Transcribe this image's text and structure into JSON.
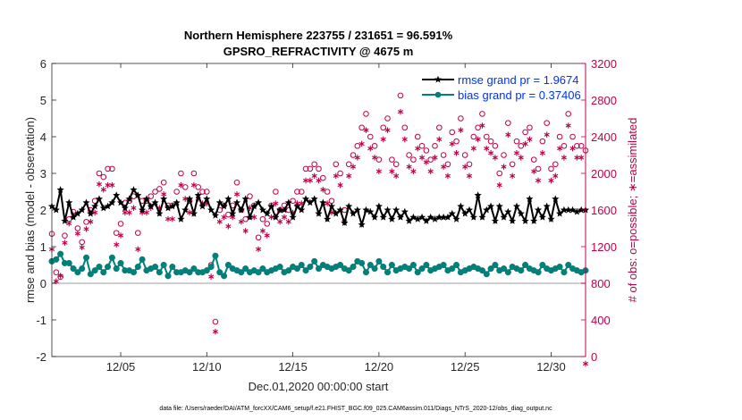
{
  "chart_data": {
    "type": "line",
    "title": "Northern Hemisphere 223755 / 231651 = 96.591%",
    "subtitle": "GPSRO_REFRACTIVITY @ 4675 m",
    "xlabel": "Dec.01,2020 00:00:00 start",
    "ylabel": "rmse and bias (model - observation)",
    "ylabel_right": "# of obs: o=possible; ∗=assimilated",
    "xlim": [
      1,
      32
    ],
    "ylim": [
      -2,
      6
    ],
    "ylim_right": [
      0,
      3200
    ],
    "x_ticks": [
      5,
      10,
      15,
      20,
      25,
      30
    ],
    "x_tick_labels": [
      "12/05",
      "12/10",
      "12/15",
      "12/20",
      "12/25",
      "12/30"
    ],
    "y_ticks": [
      -2,
      -1,
      0,
      1,
      2,
      3,
      4,
      5,
      6
    ],
    "y_tick_labels": [
      "-2",
      "-1",
      "0",
      "1",
      "2",
      "3",
      "4",
      "5",
      "6"
    ],
    "y_right_ticks": [
      0,
      400,
      800,
      1200,
      1600,
      2000,
      2400,
      2800,
      3200
    ],
    "y_right_tick_labels": [
      "0",
      "400",
      "800",
      "1200",
      "1600",
      "2000",
      "2400",
      "2800",
      "3200"
    ],
    "x": [
      1.0,
      1.25,
      1.5,
      1.75,
      2.0,
      2.25,
      2.5,
      2.75,
      3.0,
      3.25,
      3.5,
      3.75,
      4.0,
      4.25,
      4.5,
      4.75,
      5.0,
      5.25,
      5.5,
      5.75,
      6.0,
      6.25,
      6.5,
      6.75,
      7.0,
      7.25,
      7.5,
      7.75,
      8.0,
      8.25,
      8.5,
      8.75,
      9.0,
      9.25,
      9.5,
      9.75,
      10.0,
      10.25,
      10.5,
      10.75,
      11.0,
      11.25,
      11.5,
      11.75,
      12.0,
      12.25,
      12.5,
      12.75,
      13.0,
      13.25,
      13.5,
      13.75,
      14.0,
      14.25,
      14.5,
      14.75,
      15.0,
      15.25,
      15.5,
      15.75,
      16.0,
      16.25,
      16.5,
      16.75,
      17.0,
      17.25,
      17.5,
      17.75,
      18.0,
      18.25,
      18.5,
      18.75,
      19.0,
      19.25,
      19.5,
      19.75,
      20.0,
      20.25,
      20.5,
      20.75,
      21.0,
      21.25,
      21.5,
      21.75,
      22.0,
      22.25,
      22.5,
      22.75,
      23.0,
      23.25,
      23.5,
      23.75,
      24.0,
      24.25,
      24.5,
      24.75,
      25.0,
      25.25,
      25.5,
      25.75,
      26.0,
      26.25,
      26.5,
      26.75,
      27.0,
      27.25,
      27.5,
      27.75,
      28.0,
      28.25,
      28.5,
      28.75,
      29.0,
      29.25,
      29.5,
      29.75,
      30.0,
      30.25,
      30.5,
      30.75,
      31.0,
      31.25,
      31.5,
      31.75,
      32.0
    ],
    "series": [
      {
        "name": "rmse grand pr = 1.9674",
        "axis": "left",
        "color": "#000000",
        "marker": "star",
        "values": [
          2.1,
          2.0,
          2.55,
          1.7,
          2.2,
          1.8,
          1.9,
          2.0,
          2.2,
          1.9,
          2.1,
          2.3,
          2.05,
          2.1,
          2.2,
          2.4,
          2.2,
          2.05,
          2.3,
          2.55,
          2.4,
          2.0,
          2.3,
          2.1,
          2.2,
          1.9,
          2.3,
          2.05,
          2.1,
          2.2,
          1.75,
          2.0,
          2.3,
          1.9,
          2.4,
          2.1,
          2.3,
          2.0,
          1.85,
          2.2,
          2.1,
          2.3,
          1.9,
          2.2,
          2.0,
          2.3,
          1.8,
          2.1,
          2.2,
          2.0,
          1.9,
          2.1,
          1.8,
          2.0,
          2.0,
          2.2,
          1.8,
          2.1,
          2.0,
          2.3,
          2.2,
          2.3,
          1.9,
          2.2,
          1.75,
          2.1,
          1.9,
          2.0,
          1.65,
          2.1,
          1.9,
          2.0,
          1.6,
          2.0,
          1.95,
          1.8,
          2.1,
          1.8,
          2.0,
          1.75,
          2.0,
          1.8,
          1.95,
          1.7,
          1.8,
          1.75,
          1.8,
          1.7,
          1.8,
          1.75,
          1.8,
          1.8,
          1.8,
          1.9,
          1.75,
          2.1,
          1.9,
          2.0,
          1.8,
          2.4,
          1.8,
          2.0,
          2.1,
          1.7,
          2.1,
          1.8,
          1.95,
          1.7,
          2.1,
          1.9,
          1.7,
          2.3,
          1.7,
          2.0,
          1.8,
          2.1,
          1.75,
          2.3,
          1.9,
          2.0,
          2.0,
          2.0,
          1.95,
          2.0,
          2.0
        ]
      },
      {
        "name": "bias grand pr = 0.37406",
        "axis": "left",
        "color": "#00807a",
        "marker": "circle",
        "values": [
          0.6,
          0.65,
          0.8,
          0.55,
          0.55,
          0.4,
          0.3,
          0.4,
          0.7,
          0.25,
          0.35,
          0.45,
          0.3,
          0.45,
          0.7,
          0.4,
          0.55,
          0.35,
          0.35,
          0.3,
          0.45,
          0.65,
          0.35,
          0.4,
          0.45,
          0.3,
          0.5,
          0.2,
          0.45,
          0.3,
          0.3,
          0.35,
          0.3,
          0.4,
          0.3,
          0.3,
          0.35,
          0.45,
          0.75,
          0.3,
          0.2,
          0.5,
          0.4,
          0.35,
          0.3,
          0.4,
          0.3,
          0.35,
          0.3,
          0.4,
          0.3,
          0.35,
          0.4,
          0.45,
          0.3,
          0.35,
          0.45,
          0.4,
          0.5,
          0.35,
          0.45,
          0.6,
          0.4,
          0.5,
          0.45,
          0.4,
          0.45,
          0.5,
          0.4,
          0.35,
          0.45,
          0.6,
          0.55,
          0.3,
          0.5,
          0.4,
          0.6,
          0.45,
          0.3,
          0.5,
          0.35,
          0.4,
          0.45,
          0.4,
          0.5,
          0.3,
          0.4,
          0.5,
          0.35,
          0.4,
          0.45,
          0.5,
          0.35,
          0.4,
          0.5,
          0.3,
          0.35,
          0.4,
          0.45,
          0.4,
          0.35,
          0.25,
          0.4,
          0.5,
          0.35,
          0.4,
          0.3,
          0.45,
          0.4,
          0.35,
          0.5,
          0.4,
          0.35,
          0.3,
          0.5,
          0.4,
          0.35,
          0.4,
          0.45,
          0.3,
          0.5,
          0.4,
          0.35,
          0.3,
          0.35
        ]
      },
      {
        "name": "possible",
        "axis": "right",
        "color": "#c0004b",
        "marker": "open-circle",
        "values": [
          1340,
          920,
          870,
          1320,
          1500,
          1580,
          1400,
          1250,
          1470,
          1600,
          1700,
          2000,
          1960,
          2050,
          2050,
          1350,
          1450,
          1680,
          1700,
          1750,
          1350,
          1700,
          1700,
          1750,
          1800,
          1830,
          1900,
          1650,
          1650,
          1800,
          2000,
          1850,
          1700,
          2000,
          1850,
          1800,
          1800,
          1000,
          380,
          1600,
          1650,
          1550,
          1650,
          1900,
          1600,
          1500,
          1750,
          1650,
          1300,
          1500,
          1450,
          1650,
          1800,
          1600,
          1650,
          1600,
          1700,
          1800,
          1800,
          2050,
          2050,
          2100,
          2050,
          1950,
          1800,
          1700,
          2100,
          2000,
          1600,
          2100,
          2200,
          2300,
          2500,
          2650,
          2400,
          2300,
          2150,
          2500,
          2600,
          2150,
          2100,
          2850,
          2500,
          2200,
          2150,
          2400,
          2300,
          2250,
          2150,
          2300,
          2500,
          2200,
          2100,
          2450,
          2350,
          2600,
          2200,
          2100,
          2400,
          2500,
          2650,
          2400,
          2350,
          2300,
          2000,
          2200,
          2550,
          2100,
          2350,
          2300,
          2450,
          2500,
          2150,
          2050,
          2350,
          2550,
          2050,
          2100,
          2400,
          2300,
          2650,
          2400,
          2300,
          2300,
          2250
        ]
      },
      {
        "name": "assimilated",
        "axis": "right",
        "color": "#c0004b",
        "marker": "asterisk",
        "values": [
          1250,
          900,
          960,
          1320,
          1530,
          1620,
          1420,
          1270,
          1470,
          1550,
          1650,
          1960,
          1900,
          1950,
          1950,
          1300,
          1400,
          1650,
          1650,
          1700,
          1250,
          1650,
          1650,
          1700,
          1750,
          1700,
          1850,
          1580,
          1580,
          1750,
          1950,
          1800,
          1650,
          1950,
          1800,
          1750,
          1750,
          950,
          350,
          1550,
          1600,
          1500,
          1600,
          1850,
          1550,
          1450,
          1700,
          1600,
          1250,
          1450,
          1400,
          1600,
          1750,
          1550,
          1600,
          1550,
          1650,
          1750,
          1750,
          2000,
          2000,
          2050,
          2000,
          1900,
          1750,
          1650,
          2050,
          1950,
          1550,
          2050,
          2150,
          2250,
          2400,
          2550,
          2350,
          2250,
          2100,
          2450,
          2550,
          2100,
          2050,
          2750,
          2450,
          2150,
          2100,
          2350,
          2250,
          2200,
          2100,
          2250,
          2450,
          2150,
          2050,
          2400,
          2300,
          2550,
          2150,
          2050,
          2350,
          2450,
          2600,
          2350,
          2300,
          2250,
          1950,
          2150,
          2500,
          2050,
          2300,
          2250,
          2400,
          2450,
          2100,
          2000,
          2300,
          2500,
          2000,
          2050,
          2350,
          2250,
          2600,
          2350,
          2250,
          2250,
          0
        ]
      }
    ],
    "legend": {
      "placement": "top-right",
      "entries": [
        "rmse grand pr = 1.9674",
        "bias grand pr = 0.37406"
      ]
    },
    "footnote": "data file: /Users/raeder/DAI/ATM_forcXX/CAM6_setup/f.e21.FHIST_BGC.f09_025.CAM6assim.011/Diags_NTrS_2020-12/obs_diag_output.nc"
  }
}
